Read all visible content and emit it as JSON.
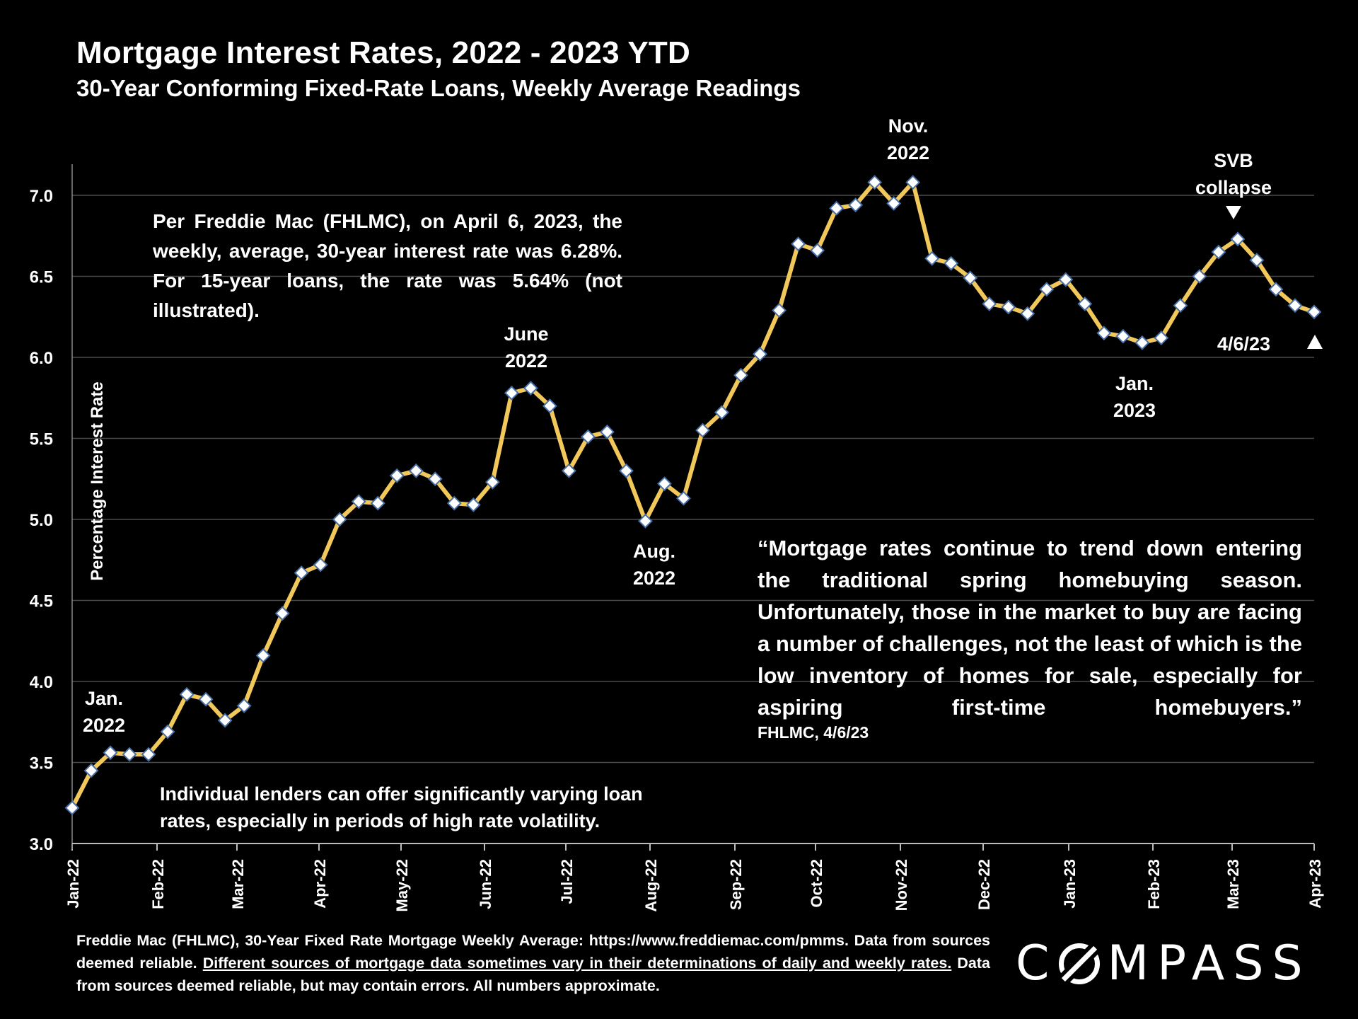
{
  "header": {
    "title": "Mortgage Interest Rates, 2022 - 2023 YTD",
    "subtitle": "30-Year Conforming Fixed-Rate Loans, Weekly Average Readings"
  },
  "notes": {
    "freddie": "Per Freddie Mac (FHLMC), on April 6, 2023, the weekly, average, 30-year interest rate was 6.28%. For 15-year loans, the rate was 5.64% (not illustrated).",
    "lenders": "Individual lenders can offer significantly varying loan rates, especially in periods of high rate volatility.",
    "quote": "“Mortgage rates continue to trend down entering the traditional spring homebuying season. Unfortunately, those in the market to buy are facing a number of challenges, not the least of which is the low inventory of homes for sale, especially for aspiring first-time homebuyers.”",
    "quote_source": "FHLMC, 4/6/23"
  },
  "footer": {
    "part1": "Freddie Mac (FHLMC), 30-Year Fixed Rate Mortgage Weekly Average:  https://www.freddiemac.com/pmms. Data from sources deemed reliable. ",
    "underlined": "Different sources of mortgage data sometimes vary in their determinations of daily and weekly rates.",
    "part2": " Data from sources deemed reliable, but may contain errors. All numbers approximate."
  },
  "logo": {
    "before": "C",
    "after": "MPASS"
  },
  "colors": {
    "line": "#f2c85b",
    "marker_fill": "#ffffff",
    "marker_stroke": "#4a6fa5",
    "grid": "#4a4a4a",
    "background": "#000000"
  },
  "chart_data": {
    "type": "line",
    "title": "Mortgage Interest Rates, 2022 - 2023 YTD",
    "subtitle": "30-Year Conforming Fixed-Rate Loans, Weekly Average Readings",
    "ylabel": "Percentage Interest  Rate",
    "xlabel": "",
    "ylim": [
      3.0,
      7.0
    ],
    "yticks": [
      "3.0",
      "3.5",
      "4.0",
      "4.5",
      "5.0",
      "5.5",
      "6.0",
      "6.5",
      "7.0"
    ],
    "xticks": [
      "Jan-22",
      "Feb-22",
      "Mar-22",
      "Apr-22",
      "May-22",
      "Jun-22",
      "Jul-22",
      "Aug-22",
      "Sep-22",
      "Oct-22",
      "Nov-22",
      "Dec-22",
      "Jan-23",
      "Feb-23",
      "Mar-23",
      "Apr-23"
    ],
    "grid": true,
    "legend": "none",
    "series": [
      {
        "name": "30-Year Fixed Rate Weekly Average",
        "values": [
          3.22,
          3.45,
          3.56,
          3.55,
          3.55,
          3.69,
          3.92,
          3.89,
          3.76,
          3.85,
          4.16,
          4.42,
          4.67,
          4.72,
          5.0,
          5.11,
          5.1,
          5.27,
          5.3,
          5.25,
          5.1,
          5.09,
          5.23,
          5.78,
          5.81,
          5.7,
          5.3,
          5.51,
          5.54,
          5.3,
          4.99,
          5.22,
          5.13,
          5.55,
          5.66,
          5.89,
          6.02,
          6.29,
          6.7,
          6.66,
          6.92,
          6.94,
          7.08,
          6.95,
          7.08,
          6.61,
          6.58,
          6.49,
          6.33,
          6.31,
          6.27,
          6.42,
          6.48,
          6.33,
          6.15,
          6.13,
          6.09,
          6.12,
          6.32,
          6.5,
          6.65,
          6.73,
          6.6,
          6.42,
          6.32,
          6.28
        ]
      }
    ],
    "annotations": [
      {
        "label": "Jan. 2022",
        "index": 0
      },
      {
        "label": "June 2022",
        "index": 24
      },
      {
        "label": "Aug. 2022",
        "index": 30
      },
      {
        "label": "Nov. 2022",
        "index": 44
      },
      {
        "label": "Jan. 2023",
        "index": 56
      },
      {
        "label": "SVB collapse",
        "index": 61
      },
      {
        "label": "4/6/23",
        "index": 65
      }
    ]
  }
}
